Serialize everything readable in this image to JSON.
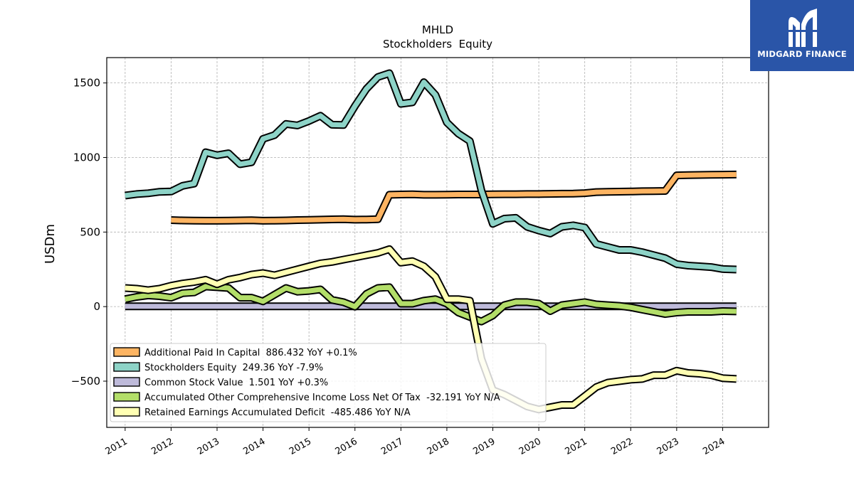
{
  "logo": {
    "text": "MIDGARD FINANCE",
    "icon": "midgard-m-icon",
    "color": "#2a55a8"
  },
  "chart_data": {
    "type": "line",
    "title": "MHLD",
    "subtitle": "Stockholders  Equity",
    "xlabel": "",
    "ylabel": "USDm",
    "xlim": [
      2010.6,
      2025.0
    ],
    "ylim": [
      -810,
      1670
    ],
    "yticks": [
      -500,
      0,
      500,
      1000,
      1500
    ],
    "ytick_labels": [
      "−500",
      "0",
      "500",
      "1000",
      "1500"
    ],
    "xticks": [
      2011,
      2012,
      2013,
      2014,
      2015,
      2016,
      2017,
      2018,
      2019,
      2020,
      2021,
      2022,
      2023,
      2024
    ],
    "xtick_labels": [
      "2011",
      "2012",
      "2013",
      "2014",
      "2015",
      "2016",
      "2017",
      "2018",
      "2019",
      "2020",
      "2021",
      "2022",
      "2023",
      "2024"
    ],
    "grid": true,
    "legend_position": "lower-left",
    "series": [
      {
        "name": "Additional Paid In Capital  886.432 YoY +0.1%",
        "color": "#fdb462",
        "x": [
          2012.0,
          2012.25,
          2012.5,
          2012.75,
          2013.0,
          2013.25,
          2013.5,
          2013.75,
          2014.0,
          2014.25,
          2014.5,
          2014.75,
          2015.0,
          2015.25,
          2015.5,
          2015.75,
          2016.0,
          2016.25,
          2016.5,
          2016.75,
          2017.0,
          2017.25,
          2017.5,
          2017.75,
          2018.0,
          2018.25,
          2018.5,
          2018.75,
          2019.0,
          2019.25,
          2019.5,
          2019.75,
          2020.0,
          2020.25,
          2020.5,
          2020.75,
          2021.0,
          2021.25,
          2021.5,
          2021.75,
          2022.0,
          2022.25,
          2022.5,
          2022.75,
          2023.0,
          2023.25,
          2023.5,
          2023.75,
          2024.0,
          2024.3
        ],
        "y": [
          580,
          578,
          577,
          576,
          576,
          577,
          578,
          579,
          576,
          577,
          578,
          580,
          581,
          583,
          585,
          586,
          583,
          584,
          586,
          750,
          752,
          753,
          750,
          750,
          751,
          752,
          752,
          752,
          753,
          754,
          754,
          755,
          755,
          756,
          757,
          758,
          761,
          768,
          770,
          771,
          772,
          774,
          775,
          776,
          880,
          882,
          883,
          884,
          885,
          886
        ]
      },
      {
        "name": "Stockholders Equity  249.36 YoY -7.9%",
        "color": "#8dd3c7",
        "x": [
          2011.0,
          2011.25,
          2011.5,
          2011.75,
          2012.0,
          2012.25,
          2012.5,
          2012.75,
          2013.0,
          2013.25,
          2013.5,
          2013.75,
          2014.0,
          2014.25,
          2014.5,
          2014.75,
          2015.0,
          2015.25,
          2015.5,
          2015.75,
          2016.0,
          2016.25,
          2016.5,
          2016.75,
          2017.0,
          2017.25,
          2017.5,
          2017.75,
          2018.0,
          2018.25,
          2018.5,
          2018.75,
          2019.0,
          2019.25,
          2019.5,
          2019.75,
          2020.0,
          2020.25,
          2020.5,
          2020.75,
          2021.0,
          2021.25,
          2021.5,
          2021.75,
          2022.0,
          2022.25,
          2022.5,
          2022.75,
          2023.0,
          2023.25,
          2023.5,
          2023.75,
          2024.0,
          2024.3
        ],
        "y": [
          745,
          755,
          760,
          770,
          772,
          810,
          825,
          1035,
          1015,
          1028,
          955,
          968,
          1125,
          1150,
          1225,
          1215,
          1245,
          1280,
          1220,
          1218,
          1345,
          1460,
          1540,
          1565,
          1360,
          1370,
          1505,
          1420,
          1235,
          1160,
          1110,
          780,
          555,
          590,
          595,
          535,
          510,
          490,
          535,
          545,
          530,
          420,
          400,
          380,
          380,
          365,
          345,
          325,
          285,
          275,
          270,
          265,
          252,
          249
        ]
      },
      {
        "name": "Common Stock Value  1.501 YoY +0.3%",
        "color": "#bebada",
        "x": [
          2011.0,
          2024.3
        ],
        "y": [
          1.5,
          1.5
        ]
      },
      {
        "name": "Accumulated Other Comprehensive Income Loss Net Of Tax  -32.191 YoY N/A",
        "color": "#b3de69",
        "x": [
          2011.0,
          2011.25,
          2011.5,
          2011.75,
          2012.0,
          2012.25,
          2012.5,
          2012.75,
          2013.0,
          2013.25,
          2013.5,
          2013.75,
          2014.0,
          2014.25,
          2014.5,
          2014.75,
          2015.0,
          2015.25,
          2015.5,
          2015.75,
          2016.0,
          2016.25,
          2016.5,
          2016.75,
          2017.0,
          2017.25,
          2017.5,
          2017.75,
          2018.0,
          2018.25,
          2018.5,
          2018.75,
          2019.0,
          2019.25,
          2019.5,
          2019.75,
          2020.0,
          2020.25,
          2020.5,
          2020.75,
          2021.0,
          2021.25,
          2021.5,
          2021.75,
          2022.0,
          2022.25,
          2022.5,
          2022.75,
          2023.0,
          2023.25,
          2023.5,
          2023.75,
          2024.0,
          2024.3
        ],
        "y": [
          50,
          65,
          75,
          70,
          60,
          90,
          95,
          135,
          130,
          125,
          60,
          60,
          35,
          80,
          125,
          100,
          105,
          115,
          45,
          30,
          0,
          85,
          125,
          130,
          20,
          20,
          40,
          50,
          20,
          -40,
          -70,
          -100,
          -60,
          10,
          30,
          30,
          20,
          -30,
          10,
          20,
          30,
          15,
          10,
          5,
          -5,
          -20,
          -35,
          -50,
          -40,
          -35,
          -35,
          -35,
          -30,
          -32
        ]
      },
      {
        "name": "Retained Earnings Accumulated Deficit  -485.486 YoY N/A",
        "color": "#ffffb3",
        "x": [
          2011.0,
          2011.25,
          2011.5,
          2011.75,
          2012.0,
          2012.25,
          2012.5,
          2012.75,
          2013.0,
          2013.25,
          2013.5,
          2013.75,
          2014.0,
          2014.25,
          2014.5,
          2014.75,
          2015.0,
          2015.25,
          2015.5,
          2015.75,
          2016.0,
          2016.25,
          2016.5,
          2016.75,
          2017.0,
          2017.25,
          2017.5,
          2017.75,
          2018.0,
          2018.25,
          2018.5,
          2018.75,
          2019.0,
          2019.25,
          2019.5,
          2019.75,
          2020.0,
          2020.25,
          2020.5,
          2020.75,
          2021.0,
          2021.25,
          2021.5,
          2021.75,
          2022.0,
          2022.25,
          2022.5,
          2022.75,
          2023.0,
          2023.25,
          2023.5,
          2023.75,
          2024.0,
          2024.3
        ],
        "y": [
          125,
          120,
          110,
          120,
          140,
          155,
          165,
          180,
          150,
          180,
          195,
          215,
          225,
          210,
          230,
          250,
          270,
          290,
          300,
          315,
          330,
          345,
          360,
          385,
          295,
          305,
          270,
          200,
          50,
          50,
          40,
          -350,
          -560,
          -590,
          -630,
          -670,
          -690,
          -675,
          -660,
          -660,
          -600,
          -540,
          -510,
          -500,
          -490,
          -485,
          -460,
          -460,
          -430,
          -445,
          -450,
          -460,
          -480,
          -485
        ]
      }
    ]
  }
}
